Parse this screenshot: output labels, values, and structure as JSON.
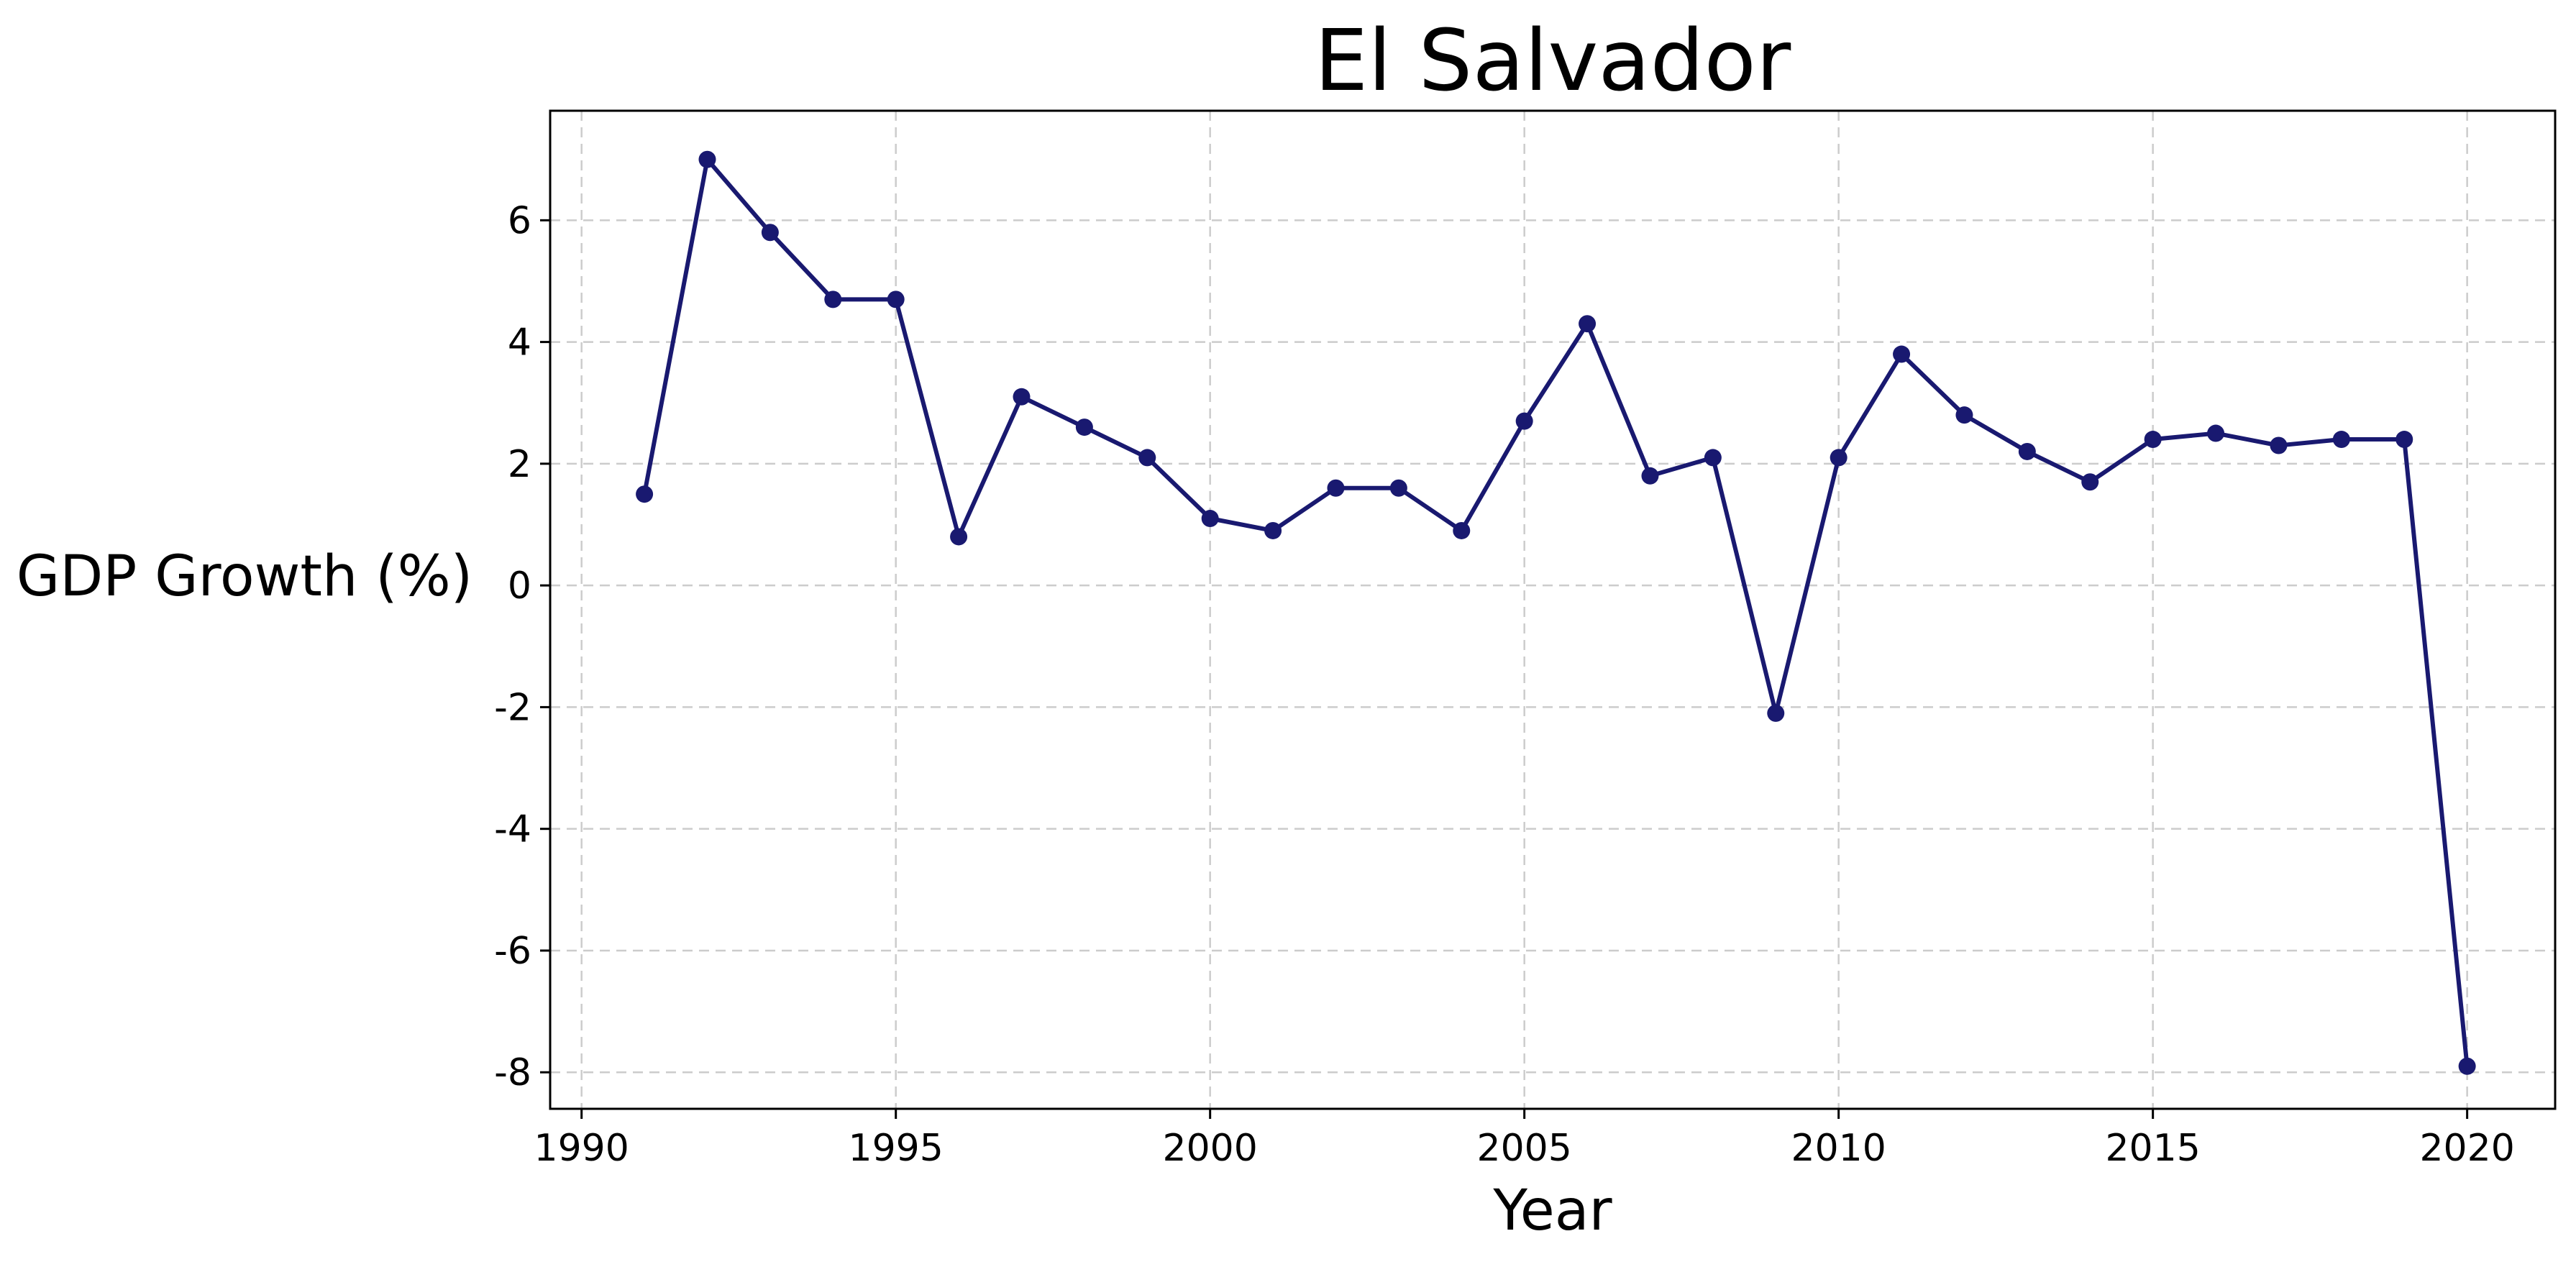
{
  "chart_data": {
    "type": "line",
    "title": "El Salvador",
    "xlabel": "Year",
    "ylabel": "GDP Growth (%)",
    "xlim": [
      1989.5,
      2021.4
    ],
    "ylim": [
      -8.6,
      7.8
    ],
    "xticks": [
      1990,
      1995,
      2000,
      2005,
      2010,
      2015,
      2020
    ],
    "yticks": [
      -8,
      -6,
      -4,
      -2,
      0,
      2,
      4,
      6
    ],
    "grid": true,
    "legend": "none",
    "series_color": "#191970",
    "x": [
      1991,
      1992,
      1993,
      1994,
      1995,
      1996,
      1997,
      1998,
      1999,
      2000,
      2001,
      2002,
      2003,
      2004,
      2005,
      2006,
      2007,
      2008,
      2009,
      2010,
      2011,
      2012,
      2013,
      2014,
      2015,
      2016,
      2017,
      2018,
      2019,
      2020
    ],
    "values": [
      1.5,
      7.0,
      5.8,
      4.7,
      4.7,
      0.8,
      3.1,
      2.6,
      2.1,
      1.1,
      0.9,
      1.6,
      1.6,
      0.9,
      2.7,
      4.3,
      1.8,
      2.1,
      -2.1,
      2.1,
      3.8,
      2.8,
      2.2,
      1.7,
      2.4,
      2.5,
      2.3,
      2.4,
      2.4,
      -7.9
    ]
  }
}
